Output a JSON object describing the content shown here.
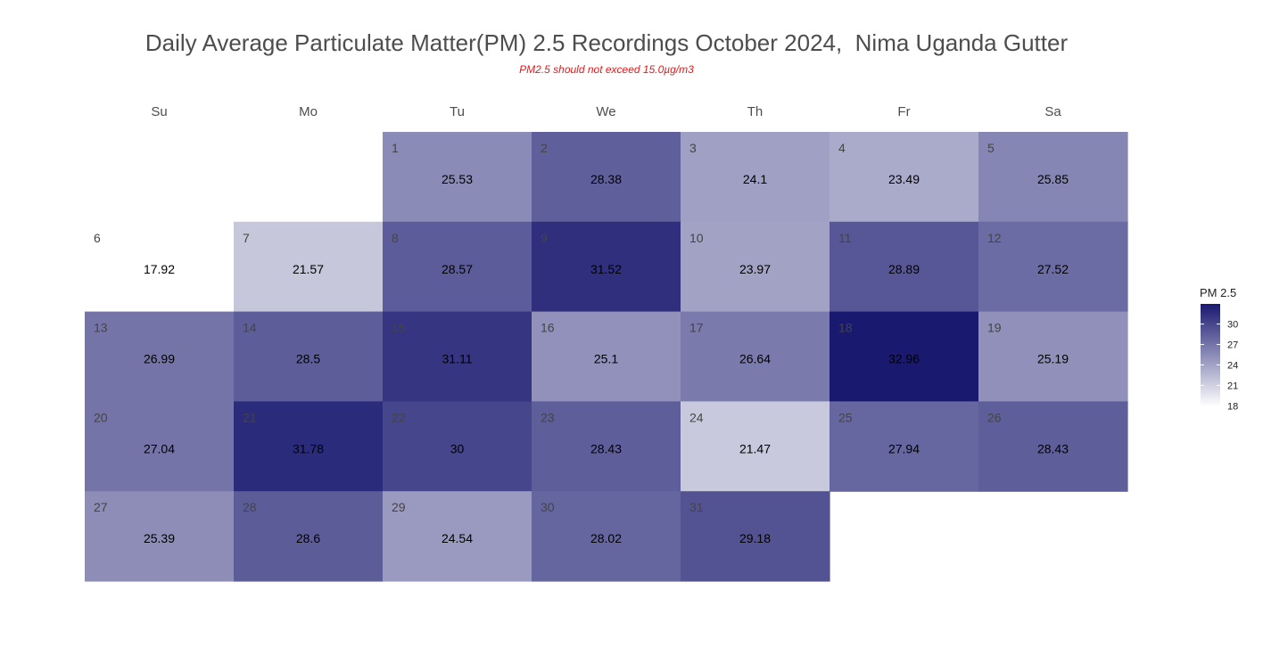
{
  "chart_data": {
    "type": "heatmap",
    "title": "Daily Average Particulate Matter(PM) 2.5 Recordings October 2024,  Nima Uganda Gutter",
    "subtitle": "PM2.5 should not exceed 15.0µg/m3",
    "weekdays": [
      "Su",
      "Mo",
      "Tu",
      "We",
      "Th",
      "Fr",
      "Sa"
    ],
    "first_weekday_index": 2,
    "days": [
      1,
      2,
      3,
      4,
      5,
      6,
      7,
      8,
      9,
      10,
      11,
      12,
      13,
      14,
      15,
      16,
      17,
      18,
      19,
      20,
      21,
      22,
      23,
      24,
      25,
      26,
      27,
      28,
      29,
      30,
      31
    ],
    "values": [
      "25.53",
      "28.38",
      "24.1",
      "23.49",
      "25.85",
      "17.92",
      "21.57",
      "28.57",
      "31.52",
      "23.97",
      "28.89",
      "27.52",
      "26.99",
      "28.5",
      "31.11",
      "25.1",
      "26.64",
      "32.96",
      "25.19",
      "27.04",
      "31.78",
      "30",
      "28.43",
      "21.47",
      "27.94",
      "28.43",
      "25.39",
      "28.6",
      "24.54",
      "28.02",
      "29.18"
    ],
    "legend": {
      "title": "PM 2.5",
      "ticks": [
        "18",
        "21",
        "24",
        "27",
        "30"
      ],
      "range": [
        17.92,
        32.96
      ],
      "low_color": "#ffffff",
      "high_color": "#191970"
    }
  }
}
